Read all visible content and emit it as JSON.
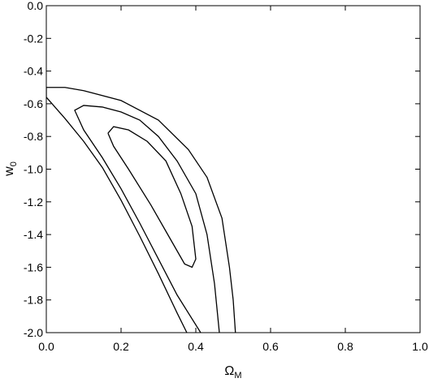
{
  "chart_data": {
    "type": "contour",
    "xlabel": {
      "text": "Ω",
      "subscript": "M"
    },
    "ylabel": {
      "text": "w",
      "subscript": "0"
    },
    "color": "#000000",
    "xlim": [
      0,
      1
    ],
    "ylim": [
      -2,
      0
    ],
    "xticks": [
      {
        "value": 0,
        "label": "0.0"
      },
      0.2,
      0.4,
      0.6,
      0.8,
      {
        "value": 1,
        "label": "1.0"
      }
    ],
    "yticks": [
      {
        "value": 0,
        "label": "0.0"
      },
      -0.2,
      -0.4,
      -0.6,
      -0.8,
      {
        "value": -1,
        "label": "-1.0"
      },
      -1.2,
      -1.4,
      -1.6,
      -1.8,
      {
        "value": -2,
        "label": "-2.0"
      }
    ],
    "contours": [
      {
        "x": [
          0.376,
          0.35,
          0.3,
          0.25,
          0.2,
          0.15,
          0.1,
          0.05,
          0,
          0,
          0.05,
          0.1,
          0.2,
          0.3,
          0.38,
          0.43,
          0.47,
          0.49,
          0.5,
          0.506
        ],
        "y": [
          -2,
          -1.88,
          -1.64,
          -1.41,
          -1.19,
          -0.99,
          -0.83,
          -0.69,
          -0.56,
          -0.5,
          -0.5,
          -0.52,
          -0.58,
          -0.7,
          -0.88,
          -1.05,
          -1.3,
          -1.6,
          -1.8,
          -2
        ]
      },
      {
        "x": [
          0.413,
          0.35,
          0.3,
          0.25,
          0.2,
          0.15,
          0.1,
          0.076,
          0.1,
          0.15,
          0.2,
          0.25,
          0.3,
          0.35,
          0.4,
          0.43,
          0.45,
          0.463
        ],
        "y": [
          -2,
          -1.77,
          -1.55,
          -1.33,
          -1.12,
          -0.93,
          -0.76,
          -0.64,
          -0.61,
          -0.62,
          -0.65,
          -0.7,
          -0.8,
          -0.95,
          -1.15,
          -1.4,
          -1.7,
          -2
        ]
      },
      {
        "x": [
          0.165,
          0.18,
          0.22,
          0.27,
          0.32,
          0.36,
          0.39,
          0.4,
          0.39,
          0.37,
          0.33,
          0.28,
          0.22,
          0.18,
          0.165
        ],
        "y": [
          -0.78,
          -0.74,
          -0.76,
          -0.83,
          -0.95,
          -1.15,
          -1.35,
          -1.55,
          -1.6,
          -1.58,
          -1.42,
          -1.22,
          -1.0,
          -0.86,
          -0.78
        ]
      }
    ]
  }
}
